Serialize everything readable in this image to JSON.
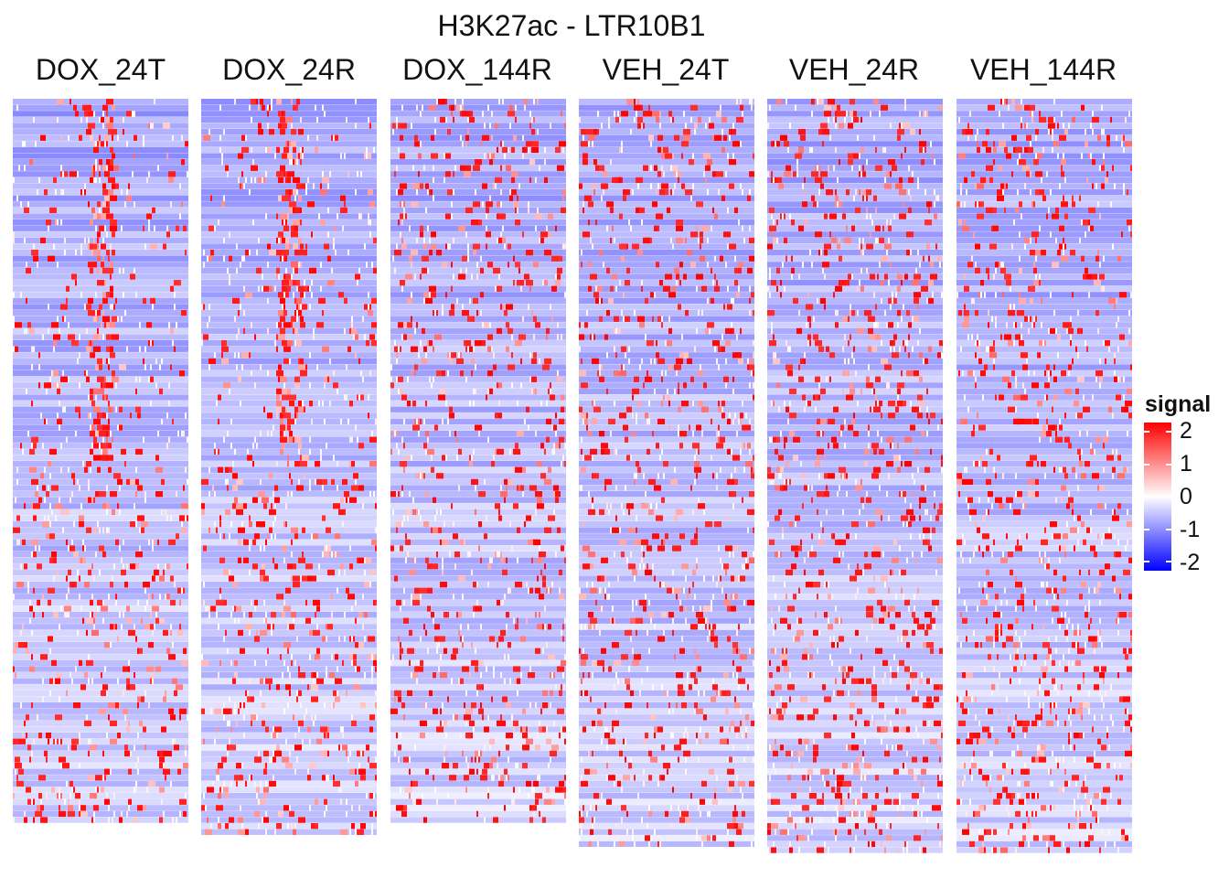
{
  "chart_data": {
    "type": "heatmap",
    "title": "H3K27ac - LTR10B1",
    "panels": [
      {
        "name": "DOX_24T",
        "n_rows": 120
      },
      {
        "name": "DOX_24R",
        "n_rows": 122
      },
      {
        "name": "DOX_144R",
        "n_rows": 120
      },
      {
        "name": "VEH_24T",
        "n_rows": 124
      },
      {
        "name": "VEH_24R",
        "n_rows": 125
      },
      {
        "name": "VEH_144R",
        "n_rows": 125
      }
    ],
    "n_cols": 96,
    "legend": {
      "title": "signal",
      "ticks": [
        2,
        1,
        0,
        -1,
        -2
      ],
      "tick_labels": [
        "2",
        "1",
        "0",
        "-1",
        "-2"
      ],
      "range": [
        -2,
        2
      ],
      "colors": {
        "low": "#0000ff",
        "mid": "#ffffff",
        "high": "#ff0000"
      },
      "position": "right"
    },
    "background_level": -0.7
  }
}
